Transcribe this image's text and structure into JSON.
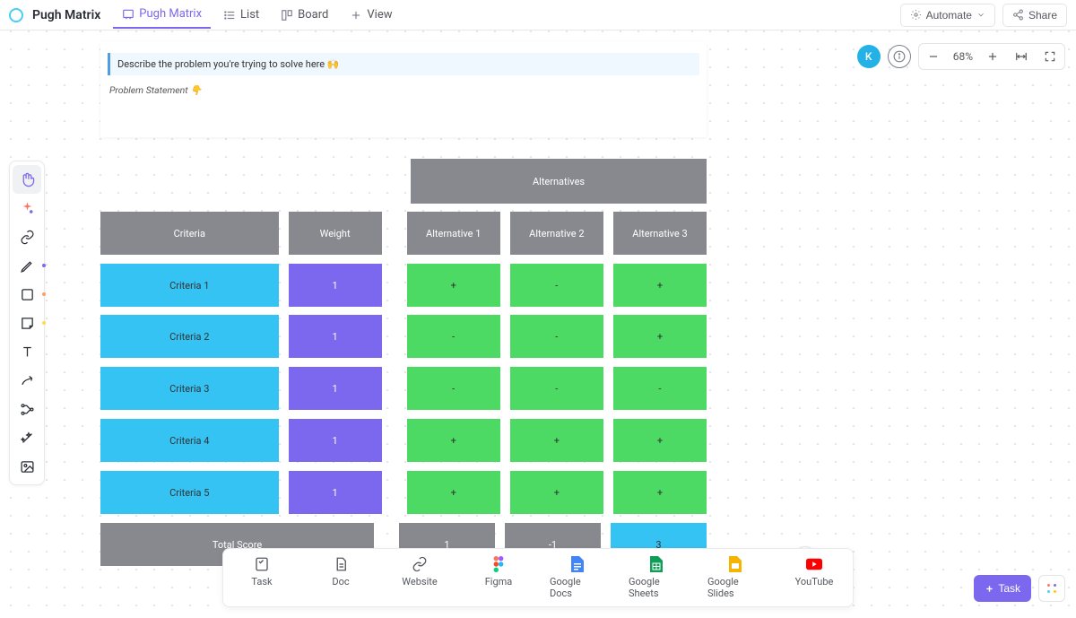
{
  "header": {
    "title": "Pugh Matrix",
    "tabs": [
      {
        "label": "Pugh Matrix",
        "icon": "whiteboard",
        "active": true
      },
      {
        "label": "List",
        "icon": "list",
        "active": false
      },
      {
        "label": "Board",
        "icon": "board",
        "active": false
      }
    ],
    "addView": "View",
    "automate": "Automate",
    "share": "Share"
  },
  "user": {
    "initial": "K",
    "avatarColor": "#23b1e6"
  },
  "zoom": {
    "level": "68%"
  },
  "document": {
    "callout": "Describe the problem you're trying to solve here 🙌",
    "problemStatement": "Problem Statement 👇"
  },
  "matrix": {
    "titles": {
      "alternativesHeader": "Alternatives",
      "criteriaHeader": "Criteria",
      "weightHeader": "Weight",
      "totalScoreLabel": "Total Score"
    },
    "colors": {
      "headerBg": "#87898e",
      "criteriaBg": "#34c3f3",
      "weightBg": "#7b68ee",
      "valueBg": "#4cd964",
      "totalHighlightBg": "#34c3f3"
    },
    "alternatives": [
      "Alternative 1",
      "Alternative 2",
      "Alternative 3"
    ],
    "rows": [
      {
        "criteria": "Criteria 1",
        "weight": "1",
        "values": [
          "+",
          "-",
          "+"
        ]
      },
      {
        "criteria": "Criteria 2",
        "weight": "1",
        "values": [
          "-",
          "-",
          "+"
        ]
      },
      {
        "criteria": "Criteria 3",
        "weight": "1",
        "values": [
          "-",
          "-",
          "-"
        ]
      },
      {
        "criteria": "Criteria 4",
        "weight": "1",
        "values": [
          "+",
          "+",
          "+"
        ]
      },
      {
        "criteria": "Criteria 5",
        "weight": "1",
        "values": [
          "+",
          "+",
          "+"
        ]
      }
    ],
    "totals": [
      "1",
      "-1",
      "3"
    ],
    "highlightTotalIndex": 2
  },
  "dock": [
    {
      "label": "Task",
      "icon": "task"
    },
    {
      "label": "Doc",
      "icon": "doc"
    },
    {
      "label": "Website",
      "icon": "link"
    },
    {
      "label": "Figma",
      "icon": "figma"
    },
    {
      "label": "Google Docs",
      "icon": "gdocs"
    },
    {
      "label": "Google Sheets",
      "icon": "gsheets"
    },
    {
      "label": "Google Slides",
      "icon": "gslides"
    },
    {
      "label": "YouTube",
      "icon": "youtube"
    }
  ],
  "bottomRight": {
    "taskButton": "Task"
  }
}
